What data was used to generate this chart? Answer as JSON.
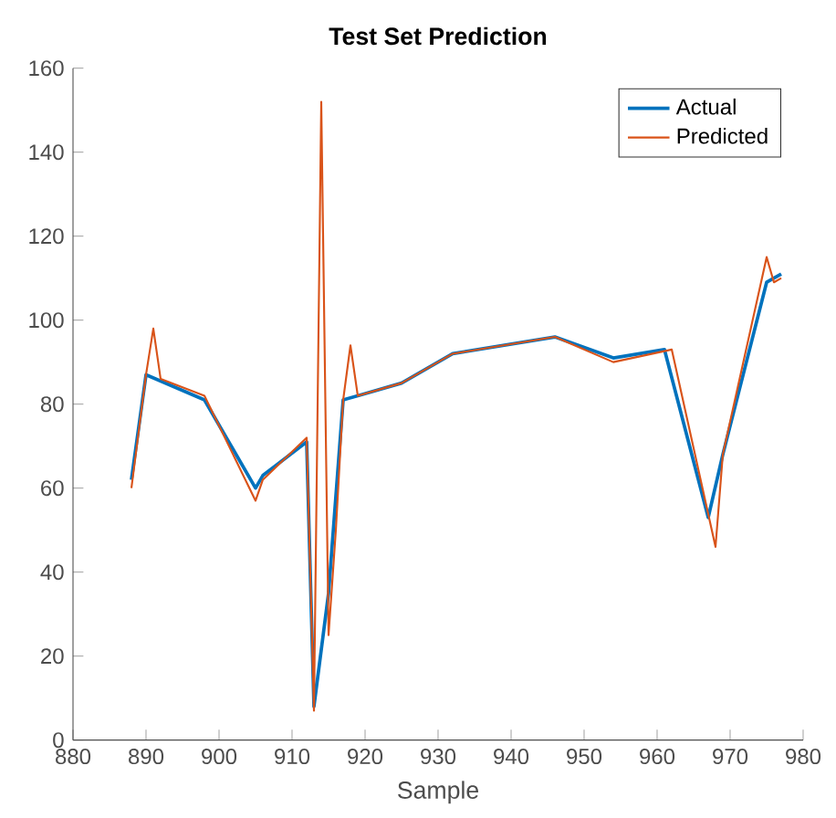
{
  "chart_data": {
    "type": "line",
    "title": "Test Set Prediction",
    "xlabel": "Sample",
    "xlim": [
      880,
      980
    ],
    "ylim": [
      0,
      160
    ],
    "xticks": [
      880,
      890,
      900,
      910,
      920,
      930,
      940,
      950,
      960,
      970,
      980
    ],
    "yticks": [
      0,
      20,
      40,
      60,
      80,
      100,
      120,
      140,
      160
    ],
    "legend": "top right",
    "grid": false,
    "series": [
      {
        "name": "Actual",
        "color": "#0072bd",
        "x": [
          888,
          890,
          898,
          905,
          906,
          912,
          913,
          915,
          917,
          919,
          925,
          932,
          946,
          954,
          961,
          967,
          969,
          975,
          977
        ],
        "values": [
          62,
          87,
          81,
          60,
          63,
          71,
          8,
          35,
          81,
          82,
          85,
          92,
          96,
          91,
          93,
          53,
          68,
          109,
          111
        ]
      },
      {
        "name": "Predicted",
        "color": "#d95319",
        "x": [
          888,
          890,
          891,
          892,
          898,
          905,
          906,
          912,
          913,
          914,
          915,
          916,
          917,
          918,
          919,
          925,
          932,
          946,
          954,
          962,
          968,
          969,
          975,
          976,
          977
        ],
        "values": [
          60,
          87,
          98,
          86,
          82,
          57,
          62,
          72,
          7,
          152,
          25,
          50,
          81,
          94,
          82,
          85,
          92,
          96,
          90,
          93,
          46,
          68,
          115,
          109,
          110
        ]
      }
    ]
  }
}
